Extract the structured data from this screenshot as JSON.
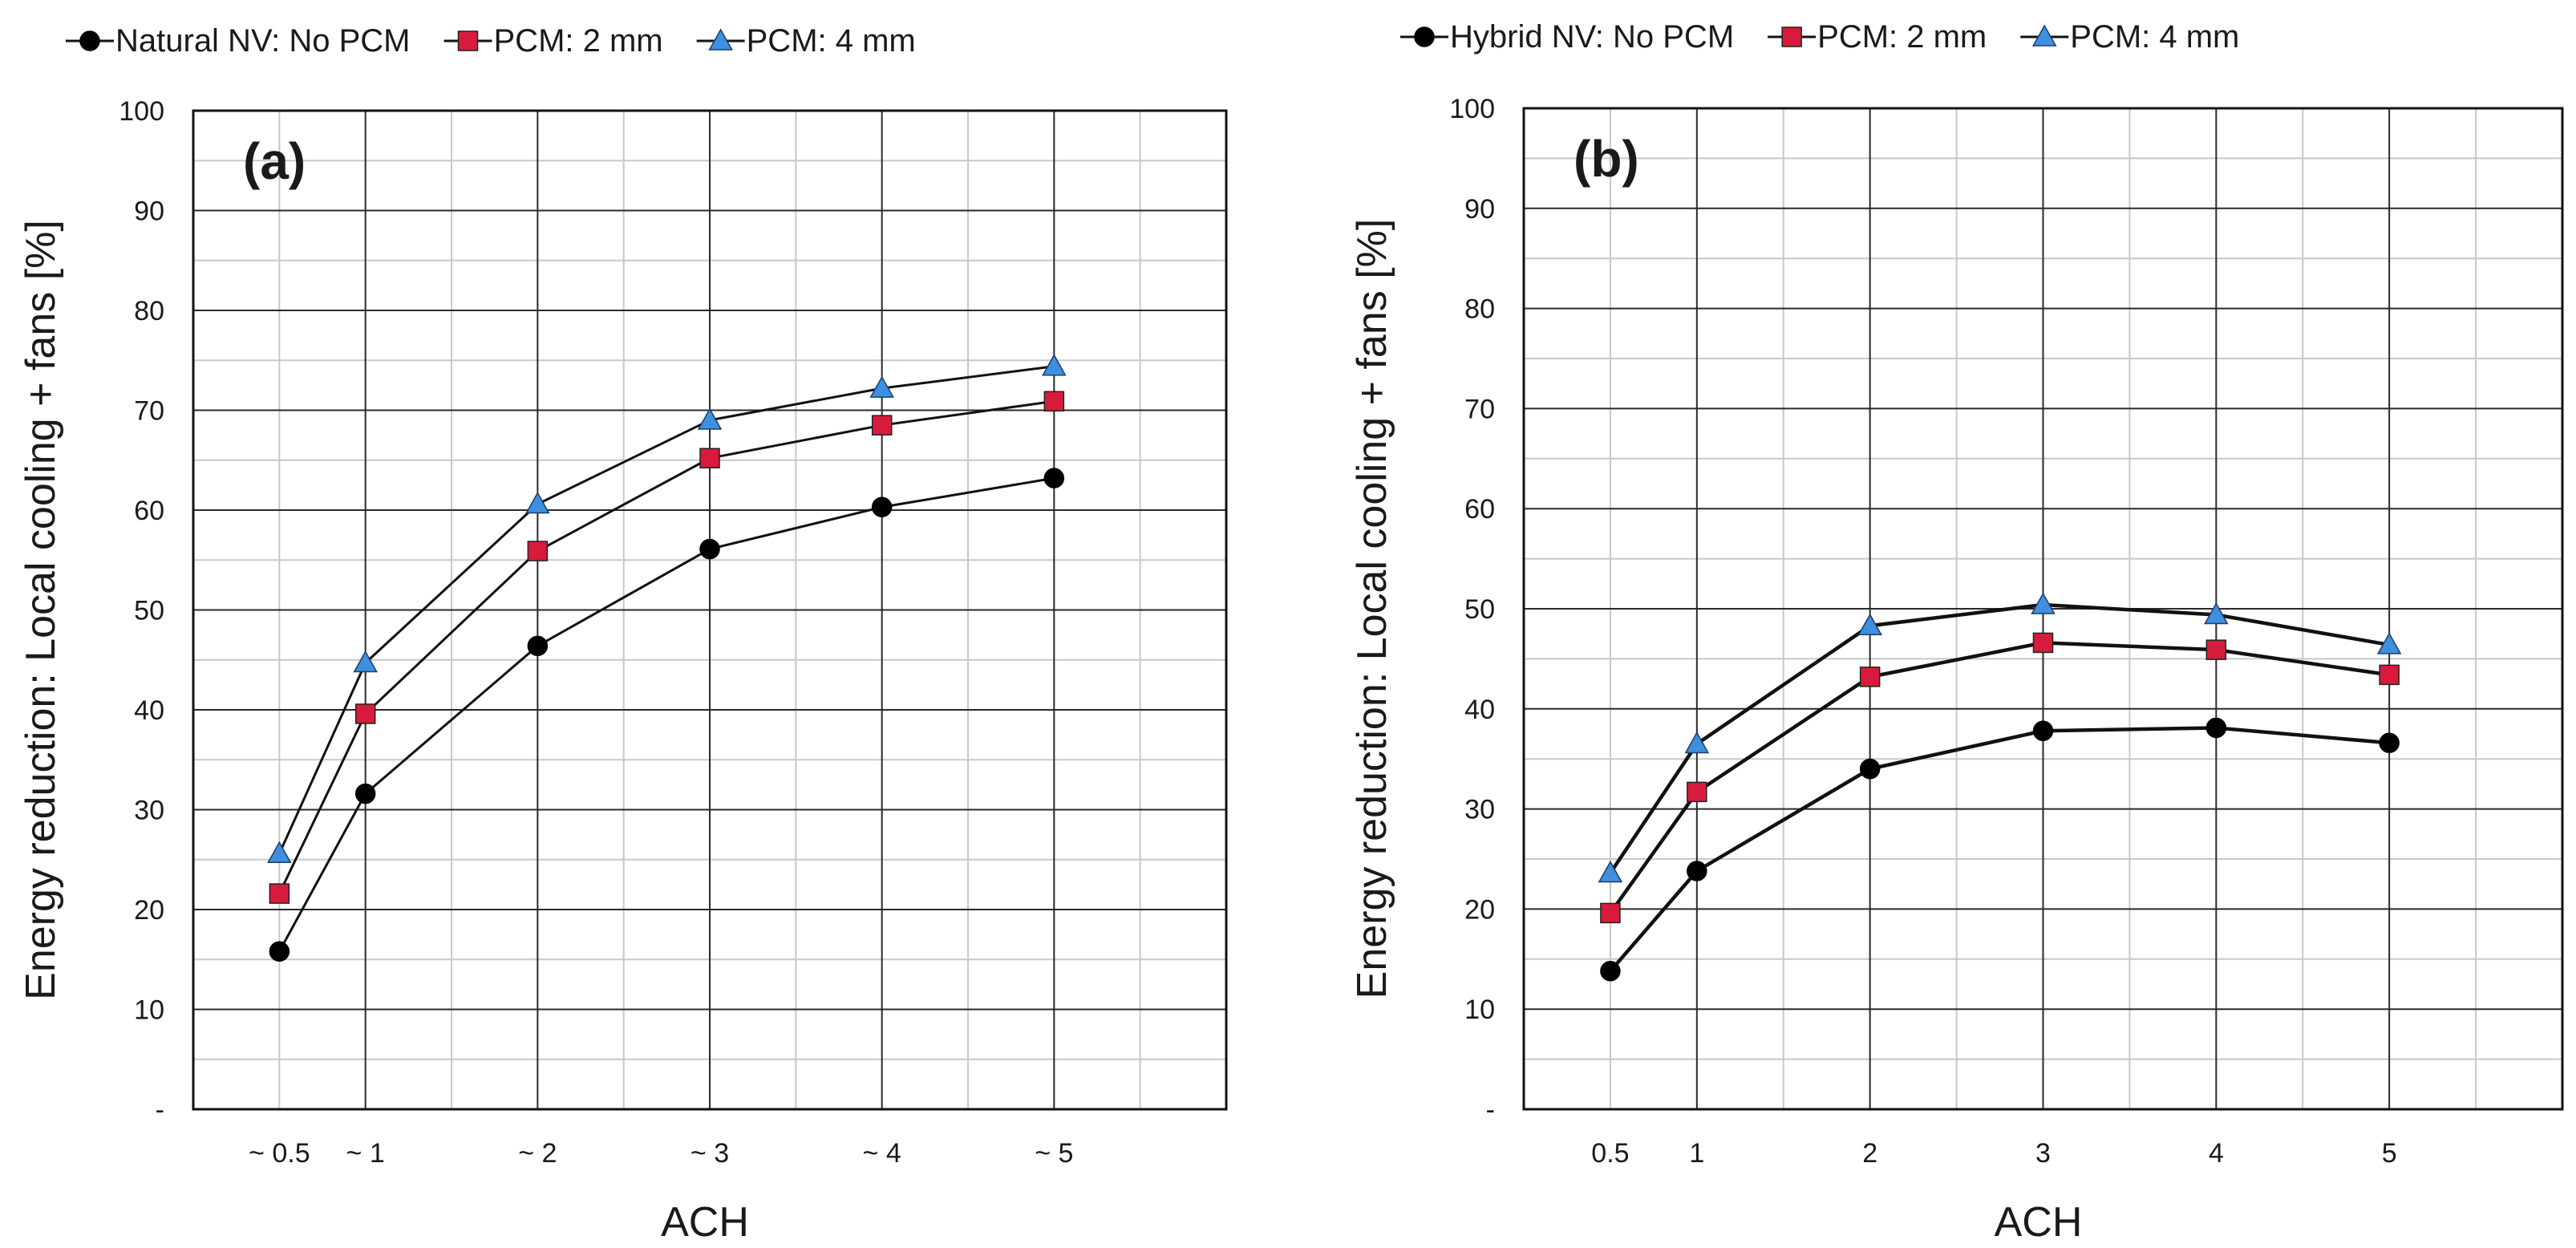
{
  "chart_data": [
    {
      "type": "line",
      "panel_label": "(a)",
      "xlabel": "ACH",
      "ylabel": "Energy reduction: Local cooling + fans [%]",
      "ylim": [
        0,
        100
      ],
      "yticks": [
        "-",
        "10",
        "20",
        "30",
        "40",
        "50",
        "60",
        "70",
        "80",
        "90",
        "100"
      ],
      "grid": true,
      "legend_position": "top",
      "x": [
        0.5,
        1,
        2,
        3,
        4,
        5
      ],
      "xlim": [
        0,
        6
      ],
      "categories": [
        "~ 0.5",
        "~ 1",
        "~ 2",
        "~ 3",
        "~ 4",
        "~ 5"
      ],
      "series": [
        {
          "name": "Natural NV: No PCM",
          "marker": "circle",
          "color": "#000000",
          "values": [
            15.8,
            31.6,
            46.4,
            56.1,
            60.3,
            63.2
          ]
        },
        {
          "name": "PCM: 2 mm",
          "marker": "square",
          "color": "#d81b3c",
          "values": [
            21.6,
            39.6,
            55.9,
            65.2,
            68.5,
            70.9
          ]
        },
        {
          "name": "PCM: 4 mm",
          "marker": "triangle",
          "color": "#3f8fe0",
          "values": [
            25.6,
            44.7,
            60.6,
            69.0,
            72.2,
            74.4
          ]
        }
      ]
    },
    {
      "type": "line",
      "panel_label": "(b)",
      "xlabel": "ACH",
      "ylabel": "Energy reduction: Local cooling + fans [%]",
      "ylim": [
        0,
        100
      ],
      "yticks": [
        "-",
        "10",
        "20",
        "30",
        "40",
        "50",
        "60",
        "70",
        "80",
        "90",
        "100"
      ],
      "grid": true,
      "legend_position": "top",
      "x": [
        0.5,
        1,
        2,
        3,
        4,
        5
      ],
      "xlim": [
        0,
        6
      ],
      "categories": [
        "0.5",
        "1",
        "2",
        "3",
        "4",
        "5"
      ],
      "series": [
        {
          "name": "Hybrid NV: No PCM",
          "marker": "circle",
          "color": "#000000",
          "values": [
            13.8,
            23.8,
            34.0,
            37.8,
            38.1,
            36.6
          ]
        },
        {
          "name": "PCM: 2 mm",
          "marker": "square",
          "color": "#d81b3c",
          "values": [
            19.6,
            31.7,
            43.2,
            46.6,
            45.9,
            43.4
          ]
        },
        {
          "name": "PCM: 4 mm",
          "marker": "triangle",
          "color": "#3f8fe0",
          "values": [
            23.6,
            36.5,
            48.3,
            50.4,
            49.4,
            46.4
          ]
        }
      ]
    }
  ]
}
